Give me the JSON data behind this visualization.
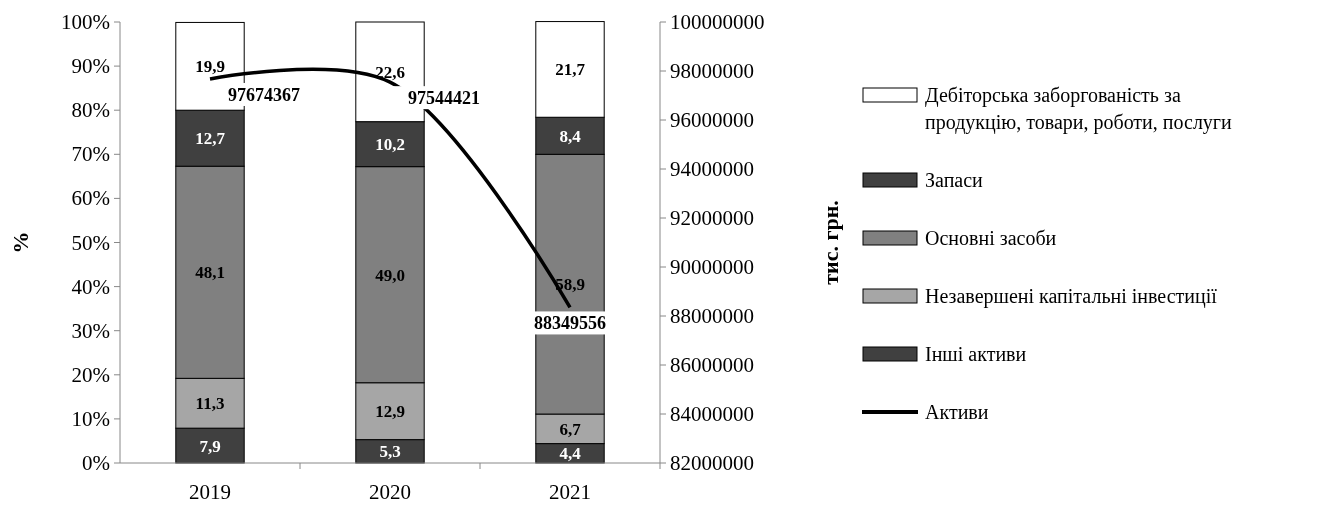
{
  "chart_data": {
    "type": "bar",
    "stacked": true,
    "categories": [
      "2019",
      "2020",
      "2021"
    ],
    "ylabel": "%",
    "y2label": "тис. грн.",
    "ylim": [
      0,
      100
    ],
    "yticks": [
      {
        "value": 0,
        "label": "0%"
      },
      {
        "value": 10,
        "label": "10%"
      },
      {
        "value": 20,
        "label": "20%"
      },
      {
        "value": 30,
        "label": "30%"
      },
      {
        "value": 40,
        "label": "40%"
      },
      {
        "value": 50,
        "label": "50%"
      },
      {
        "value": 60,
        "label": "60%"
      },
      {
        "value": 70,
        "label": "70%"
      },
      {
        "value": 80,
        "label": "80%"
      },
      {
        "value": 90,
        "label": "90%"
      },
      {
        "value": 100,
        "label": "100%"
      }
    ],
    "y2lim": [
      82000000,
      100000000
    ],
    "y2ticks": [
      82000000,
      84000000,
      86000000,
      88000000,
      90000000,
      92000000,
      94000000,
      96000000,
      98000000,
      100000000
    ],
    "legend": "right",
    "series": [
      {
        "name": "Інші активи",
        "color": "#404040",
        "values": [
          7.9,
          5.3,
          4.4
        ],
        "value_labels": [
          "7,9",
          "5,3",
          "4,4"
        ]
      },
      {
        "name": "Незавершені капітальні інвестиції",
        "color": "#a6a6a6",
        "values": [
          11.3,
          12.9,
          6.7
        ],
        "value_labels": [
          "11,3",
          "12,9",
          "6,7"
        ]
      },
      {
        "name": "Основні засоби",
        "color": "#808080",
        "values": [
          48.1,
          49.0,
          58.9
        ],
        "value_labels": [
          "48,1",
          "49,0",
          "58,9"
        ]
      },
      {
        "name": "Запаси",
        "color": "#404040",
        "values": [
          12.7,
          10.2,
          8.4
        ],
        "value_labels": [
          "12,7",
          "10,2",
          "8,4"
        ]
      },
      {
        "name": "Дебіторська заборгованість за продукцію, товари, роботи, послуги",
        "color": "#ffffff",
        "values": [
          19.9,
          22.6,
          21.7
        ],
        "value_labels": [
          "19,9",
          "22,6",
          "21,7"
        ]
      },
      {
        "name": "Активи",
        "type": "line",
        "axis": "y2",
        "color": "#000000",
        "line_style": "solid",
        "values": [
          97674367,
          97544421,
          88349556
        ],
        "value_labels": [
          "97674367",
          "97544421",
          "88349556"
        ]
      }
    ]
  }
}
